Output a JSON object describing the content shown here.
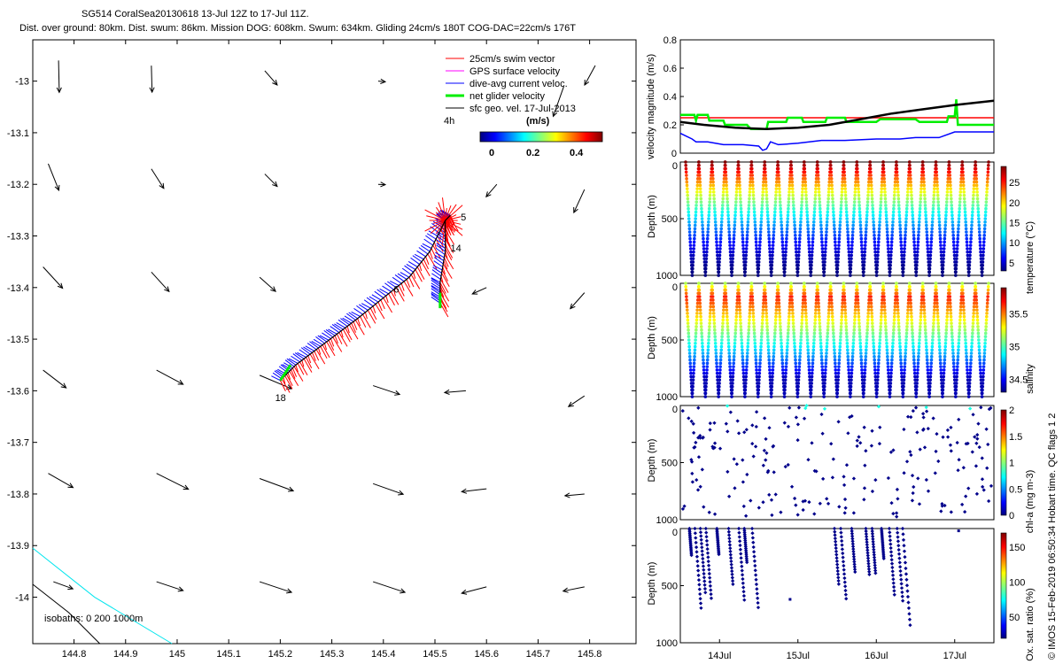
{
  "title_line1": "SG514 CoralSea20130618 13-Jul 12Z to 17-Jul 11Z.",
  "title_line2": "Dist. over ground: 80km. Dist. swum: 86km. Mission DOG: 608km. Swum: 634km. Gliding 24cm/s 180T COG-DAC=22cm/s 176T",
  "credit": "© IMOS 15-Feb-2019 06:50:34 Hobart time. QC flags 1  2",
  "colors": {
    "swim": "#ff0000",
    "gps": "#ff00ff",
    "dac": "#0000ff",
    "net": "#00ee00",
    "geo": "#000000",
    "iso200": "#00e5ee"
  },
  "chart_data": [
    {
      "type": "scatter",
      "name": "map",
      "xticks": [
        "144.8",
        "144.9",
        "145",
        "145.1",
        "145.2",
        "145.3",
        "145.4",
        "145.5",
        "145.6",
        "145.7",
        "145.8"
      ],
      "yticks": [
        "-13",
        "-13.1",
        "-13.2",
        "-13.3",
        "-13.4",
        "-13.5",
        "-13.6",
        "-13.7",
        "-13.8",
        "-13.9",
        "-14"
      ],
      "xlim": [
        144.72,
        145.89
      ],
      "ylim": [
        -14.09,
        -12.92
      ],
      "legend": [
        "25cm/s swim vector",
        "GPS surface velocity",
        "dive-avg current veloc.",
        "net glider velocity",
        "sfc geo. vel. 17-Jul-2013"
      ],
      "legend_note": "4h",
      "colorbar_label": "(m/s)",
      "colorbar_ticks": [
        "0",
        "0.2",
        "0.4"
      ],
      "isobaths_label": "isobaths: 0   200  1000m",
      "track": [
        [
          145.2,
          -13.58
        ],
        [
          145.23,
          -13.55
        ],
        [
          145.27,
          -13.52
        ],
        [
          145.31,
          -13.49
        ],
        [
          145.35,
          -13.46
        ],
        [
          145.4,
          -13.42
        ],
        [
          145.45,
          -13.38
        ],
        [
          145.49,
          -13.33
        ],
        [
          145.52,
          -13.27
        ],
        [
          145.53,
          -13.26
        ]
      ],
      "track_branch": [
        [
          145.52,
          -13.27
        ],
        [
          145.52,
          -13.33
        ],
        [
          145.51,
          -13.39
        ],
        [
          145.51,
          -13.43
        ]
      ],
      "day_labels": [
        {
          "t": "5",
          "x": 145.55,
          "y": -13.27
        },
        {
          "t": "14",
          "x": 145.53,
          "y": -13.33
        },
        {
          "t": "6",
          "x": 145.42,
          "y": -13.41
        },
        {
          "t": "18",
          "x": 145.19,
          "y": -13.62
        }
      ],
      "geo_arrows": [
        {
          "lon": 144.77,
          "lat": -12.96,
          "u": 0.02,
          "v": -0.9
        },
        {
          "lon": 144.95,
          "lat": -12.97,
          "u": 0.02,
          "v": -0.75
        },
        {
          "lon": 145.17,
          "lat": -12.98,
          "u": 0.35,
          "v": -0.4
        },
        {
          "lon": 145.39,
          "lat": -13.0,
          "u": 0.2,
          "v": -0.02
        },
        {
          "lon": 145.75,
          "lat": -13.01,
          "u": -0.3,
          "v": -0.85
        },
        {
          "lon": 144.75,
          "lat": -13.16,
          "u": 0.3,
          "v": -0.75
        },
        {
          "lon": 144.95,
          "lat": -13.17,
          "u": 0.35,
          "v": -0.55
        },
        {
          "lon": 145.17,
          "lat": -13.18,
          "u": 0.35,
          "v": -0.35
        },
        {
          "lon": 145.39,
          "lat": -13.2,
          "u": 0.2,
          "v": -0.01
        },
        {
          "lon": 145.62,
          "lat": -13.2,
          "u": -0.3,
          "v": -0.35
        },
        {
          "lon": 145.79,
          "lat": -13.21,
          "u": -0.3,
          "v": -0.65
        },
        {
          "lon": 144.74,
          "lat": -13.36,
          "u": 0.55,
          "v": -0.6
        },
        {
          "lon": 144.95,
          "lat": -13.37,
          "u": 0.5,
          "v": -0.55
        },
        {
          "lon": 145.16,
          "lat": -13.38,
          "u": 0.45,
          "v": -0.4
        },
        {
          "lon": 145.6,
          "lat": -13.4,
          "u": -0.4,
          "v": -0.18
        },
        {
          "lon": 145.79,
          "lat": -13.41,
          "u": -0.4,
          "v": -0.45
        },
        {
          "lon": 144.74,
          "lat": -13.56,
          "u": 0.65,
          "v": -0.5
        },
        {
          "lon": 144.96,
          "lat": -13.56,
          "u": 0.75,
          "v": -0.4
        },
        {
          "lon": 145.16,
          "lat": -13.57,
          "u": 0.9,
          "v": -0.38
        },
        {
          "lon": 145.38,
          "lat": -13.59,
          "u": 0.75,
          "v": -0.25
        },
        {
          "lon": 145.56,
          "lat": -13.6,
          "u": -0.6,
          "v": -0.05
        },
        {
          "lon": 145.79,
          "lat": -13.61,
          "u": -0.45,
          "v": -0.3
        },
        {
          "lon": 144.75,
          "lat": -13.76,
          "u": 0.7,
          "v": -0.4
        },
        {
          "lon": 144.96,
          "lat": -13.76,
          "u": 0.9,
          "v": -0.45
        },
        {
          "lon": 145.16,
          "lat": -13.77,
          "u": 0.95,
          "v": -0.35
        },
        {
          "lon": 145.38,
          "lat": -13.78,
          "u": 0.85,
          "v": -0.3
        },
        {
          "lon": 145.6,
          "lat": -13.79,
          "u": -0.7,
          "v": -0.08
        },
        {
          "lon": 145.79,
          "lat": -13.8,
          "u": -0.55,
          "v": -0.05
        },
        {
          "lon": 144.76,
          "lat": -13.97,
          "u": 0.55,
          "v": -0.2
        },
        {
          "lon": 144.96,
          "lat": -13.97,
          "u": 0.75,
          "v": -0.25
        },
        {
          "lon": 145.16,
          "lat": -13.97,
          "u": 0.9,
          "v": -0.3
        },
        {
          "lon": 145.38,
          "lat": -13.97,
          "u": 0.9,
          "v": -0.3
        },
        {
          "lon": 145.6,
          "lat": -13.98,
          "u": -0.7,
          "v": -0.18
        },
        {
          "lon": 145.79,
          "lat": -13.98,
          "u": -0.6,
          "v": -0.12
        }
      ],
      "isobath_0": [
        [
          144.72,
          -13.975
        ],
        [
          144.79,
          -14.03
        ],
        [
          144.85,
          -14.09
        ]
      ],
      "isobath_200": [
        [
          144.72,
          -13.905
        ],
        [
          144.84,
          -14.0
        ],
        [
          144.99,
          -14.09
        ]
      ]
    },
    {
      "type": "line",
      "name": "velocity",
      "ylabel": "velocity magnitude (m/s)",
      "ylim": [
        0,
        0.8
      ],
      "yticks": [
        "0",
        "0.2",
        "0.4",
        "0.6",
        "0.8"
      ],
      "xlim": [
        13.5,
        17.5
      ],
      "series": [
        {
          "key": "swim",
          "values": [
            [
              13.5,
              0.25
            ],
            [
              17.5,
              0.25
            ]
          ]
        },
        {
          "key": "net",
          "values": [
            [
              13.5,
              0.27
            ],
            [
              13.68,
              0.27
            ],
            [
              13.7,
              0.23
            ],
            [
              13.72,
              0.27
            ],
            [
              13.85,
              0.27
            ],
            [
              13.87,
              0.23
            ],
            [
              14.05,
              0.23
            ],
            [
              14.07,
              0.2
            ],
            [
              14.35,
              0.2
            ],
            [
              14.4,
              0.17
            ],
            [
              14.6,
              0.17
            ],
            [
              14.62,
              0.22
            ],
            [
              14.85,
              0.22
            ],
            [
              14.87,
              0.25
            ],
            [
              15.05,
              0.25
            ],
            [
              15.07,
              0.22
            ],
            [
              15.35,
              0.22
            ],
            [
              15.37,
              0.25
            ],
            [
              15.6,
              0.25
            ],
            [
              15.62,
              0.22
            ],
            [
              16.0,
              0.22
            ],
            [
              16.05,
              0.24
            ],
            [
              16.5,
              0.24
            ],
            [
              16.55,
              0.22
            ],
            [
              16.9,
              0.22
            ],
            [
              16.92,
              0.26
            ],
            [
              17.0,
              0.26
            ],
            [
              17.02,
              0.38
            ],
            [
              17.04,
              0.2
            ],
            [
              17.5,
              0.2
            ]
          ]
        },
        {
          "key": "dac",
          "values": [
            [
              13.5,
              0.14
            ],
            [
              13.65,
              0.1
            ],
            [
              13.7,
              0.08
            ],
            [
              13.85,
              0.08
            ],
            [
              14.05,
              0.06
            ],
            [
              14.3,
              0.06
            ],
            [
              14.5,
              0.05
            ],
            [
              14.55,
              0.02
            ],
            [
              14.6,
              0.03
            ],
            [
              14.65,
              0.08
            ],
            [
              14.75,
              0.06
            ],
            [
              15.0,
              0.07
            ],
            [
              15.3,
              0.09
            ],
            [
              15.6,
              0.09
            ],
            [
              16.0,
              0.1
            ],
            [
              16.3,
              0.1
            ],
            [
              16.5,
              0.11
            ],
            [
              16.8,
              0.11
            ],
            [
              17.0,
              0.15
            ],
            [
              17.5,
              0.15
            ]
          ]
        },
        {
          "key": "geo",
          "values": [
            [
              13.5,
              0.22
            ],
            [
              13.8,
              0.2
            ],
            [
              14.2,
              0.18
            ],
            [
              14.6,
              0.17
            ],
            [
              15.0,
              0.18
            ],
            [
              15.4,
              0.2
            ],
            [
              15.8,
              0.24
            ],
            [
              16.2,
              0.28
            ],
            [
              16.6,
              0.31
            ],
            [
              17.0,
              0.34
            ],
            [
              17.5,
              0.37
            ]
          ]
        }
      ]
    },
    {
      "type": "scatter",
      "name": "temperature",
      "ylabel": "Depth (m)",
      "clabel": "temperature (°C)",
      "cticks": [
        "5",
        "10",
        "15",
        "20",
        "25"
      ],
      "crange": [
        3,
        29
      ],
      "yticks": [
        "0",
        "500",
        "1000"
      ]
    },
    {
      "type": "scatter",
      "name": "salinity",
      "ylabel": "Depth (m)",
      "clabel": "salinity",
      "cticks": [
        "34.5",
        "35",
        "35.5"
      ],
      "crange": [
        34.3,
        35.9
      ],
      "yticks": [
        "0",
        "500",
        "1000"
      ]
    },
    {
      "type": "scatter",
      "name": "chla",
      "ylabel": "Depth (m)",
      "clabel": "chl-a (mg m-3)",
      "cticks": [
        "0",
        "0.5",
        "1",
        "1.5",
        "2"
      ],
      "crange": [
        0,
        2
      ],
      "yticks": [
        "0",
        "500",
        "1000"
      ]
    },
    {
      "type": "scatter",
      "name": "oxygen",
      "ylabel": "Depth (m)",
      "clabel": "Ox. sat. ratio (%)",
      "cticks": [
        "50",
        "100",
        "150"
      ],
      "crange": [
        20,
        170
      ],
      "yticks": [
        "0",
        "500",
        "1000"
      ],
      "xticks": [
        "14Jul",
        "15Jul",
        "16Jul",
        "17Jul"
      ],
      "xtick_days": [
        14,
        15,
        16,
        17
      ]
    }
  ]
}
